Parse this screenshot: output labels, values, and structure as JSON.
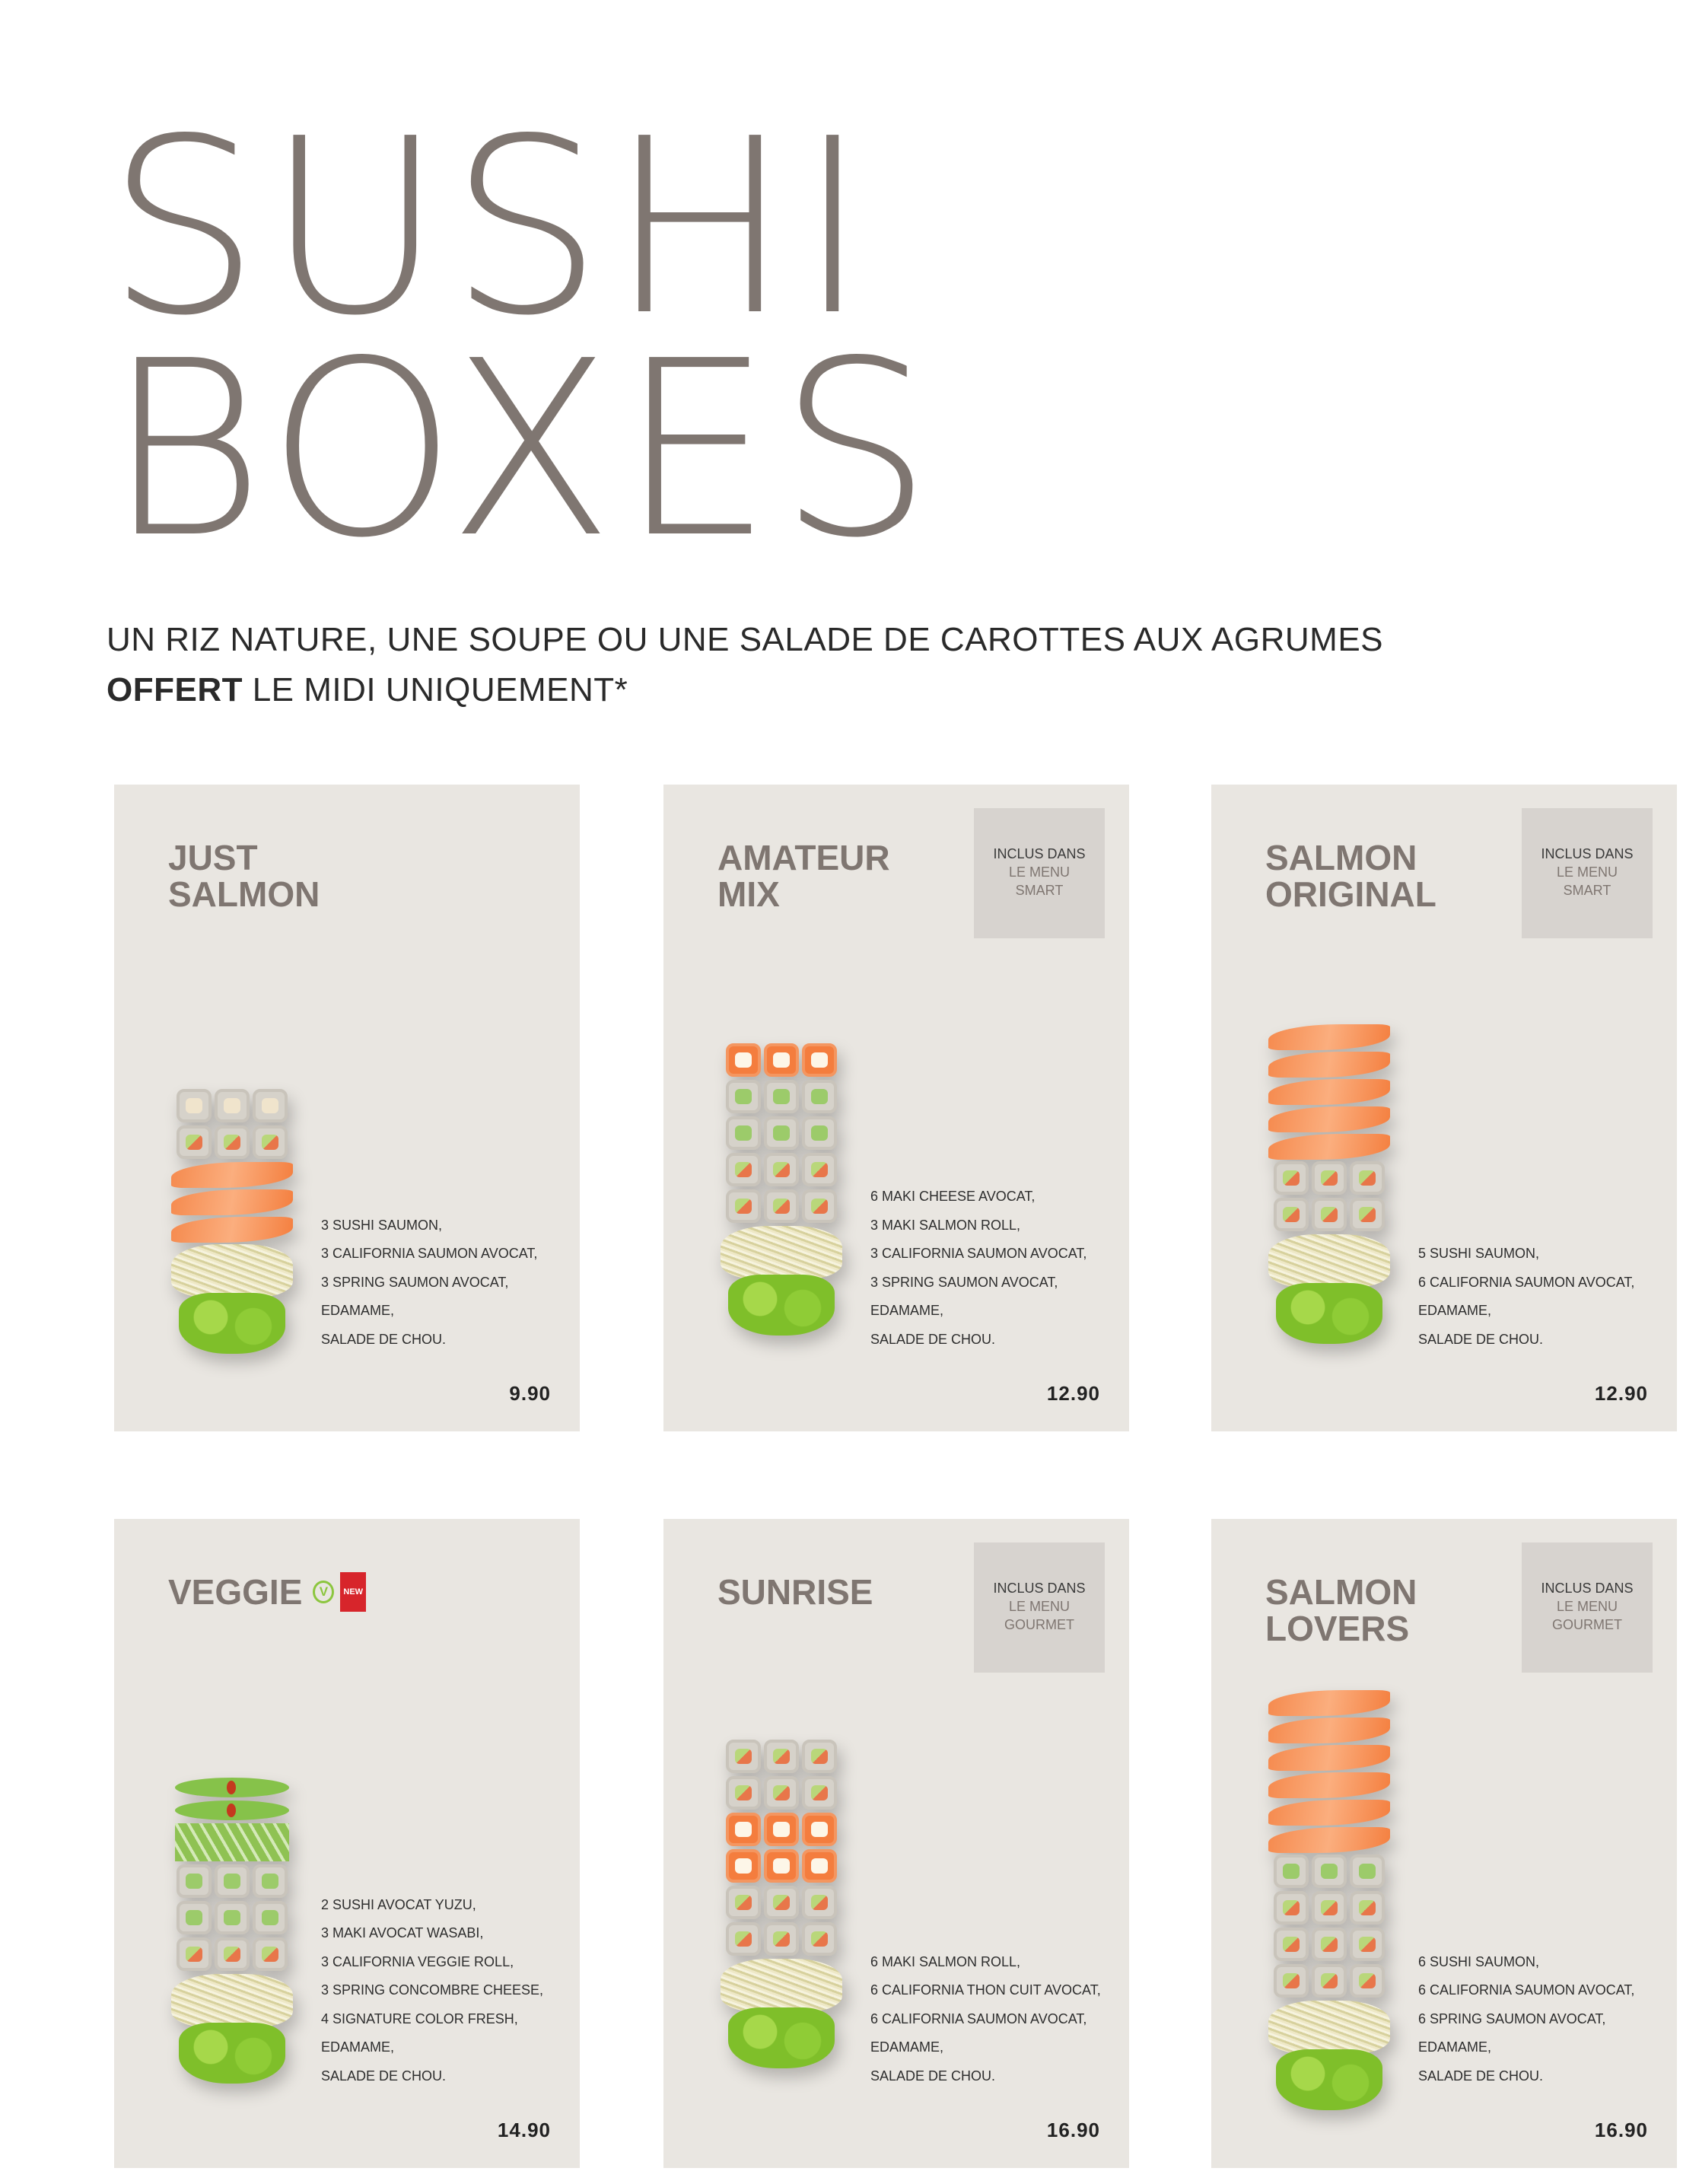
{
  "header": {
    "title_line1": "SUSHI",
    "title_line2": "BOXES",
    "subtitle_line1": "UN RIZ NATURE, UNE SOUPE OU UNE SALADE DE CAROTTES AUX AGRUMES",
    "subtitle_bold": "OFFERT",
    "subtitle_line2_rest": " LE MIDI UNIQUEMENT*"
  },
  "boxes": [
    {
      "name": "JUST\nSALMON",
      "badge": null,
      "items": [
        "3 SUSHI SAUMON,",
        "3 CALIFORNIA SAUMON AVOCAT,",
        "3 SPRING SAUMON AVOCAT,",
        "EDAMAME,",
        "SALADE DE CHOU."
      ],
      "price": "9.90"
    },
    {
      "name": "AMATEUR\nMIX",
      "badge": {
        "line1": "INCLUS DANS",
        "line2": "LE MENU",
        "line3": "SMART"
      },
      "items": [
        "6 MAKI CHEESE AVOCAT,",
        "3 MAKI SALMON ROLL,",
        "3 CALIFORNIA SAUMON AVOCAT,",
        "3 SPRING SAUMON AVOCAT,",
        "EDAMAME,",
        "SALADE DE CHOU."
      ],
      "price": "12.90"
    },
    {
      "name": "SALMON\nORIGINAL",
      "badge": {
        "line1": "INCLUS DANS",
        "line2": "LE MENU",
        "line3": "SMART"
      },
      "items": [
        "5 SUSHI SAUMON,",
        "6 CALIFORNIA SAUMON AVOCAT,",
        "EDAMAME,",
        "SALADE DE CHOU."
      ],
      "price": "12.90"
    },
    {
      "name": "VEGGIE",
      "veggie_icon": "V",
      "new_badge": "NEW",
      "badge": null,
      "items": [
        "2 SUSHI AVOCAT YUZU,",
        "3 MAKI AVOCAT WASABI,",
        "3 CALIFORNIA VEGGIE ROLL,",
        "3 SPRING CONCOMBRE CHEESE,",
        "4 SIGNATURE COLOR FRESH,",
        "EDAMAME,",
        "SALADE DE CHOU."
      ],
      "price": "14.90"
    },
    {
      "name": "SUNRISE",
      "badge": {
        "line1": "INCLUS DANS",
        "line2": "LE MENU",
        "line3": "GOURMET"
      },
      "items": [
        "6 MAKI SALMON ROLL,",
        "6 CALIFORNIA THON CUIT AVOCAT,",
        "6 CALIFORNIA SAUMON AVOCAT,",
        "EDAMAME,",
        "SALADE DE CHOU."
      ],
      "price": "16.90"
    },
    {
      "name": "SALMON\nLOVERS",
      "badge": {
        "line1": "INCLUS DANS",
        "line2": "LE MENU",
        "line3": "GOURMET"
      },
      "items": [
        "6 SUSHI SAUMON,",
        "6 CALIFORNIA SAUMON AVOCAT,",
        "6 SPRING SAUMON AVOCAT,",
        "EDAMAME,",
        "SALADE DE CHOU."
      ],
      "price": "16.90"
    }
  ],
  "colors": {
    "title": "#7f7671",
    "card_bg": "#e9e6e1",
    "badge_bg": "#d7d3cf",
    "veggie_green": "#8cc63f",
    "new_red": "#d7252b"
  }
}
